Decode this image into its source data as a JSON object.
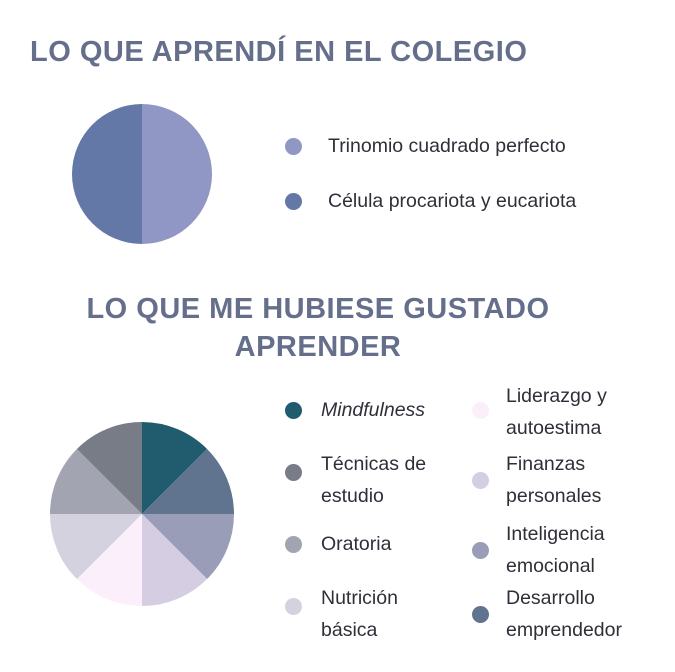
{
  "title_1": "LO QUE APRENDÍ EN EL COLEGIO",
  "title_2": "LO QUE ME HUBIESE GUSTADO APRENDER",
  "chart_data": [
    {
      "type": "pie",
      "title": "LO QUE APRENDÍ EN EL COLEGIO",
      "slices": [
        {
          "label": "Trinomio cuadrado perfecto",
          "value": 50,
          "color": "#9197c4"
        },
        {
          "label": "Célula procariota y eucariota",
          "value": 50,
          "color": "#6478a7"
        }
      ]
    },
    {
      "type": "pie",
      "title": "LO QUE ME HUBIESE GUSTADO APRENDER",
      "slices": [
        {
          "label": "Mindfulness",
          "value": 12.5,
          "color": "#215c6e",
          "italic": true
        },
        {
          "label": "Desarrollo emprendedor",
          "value": 12.5,
          "color": "#60748f"
        },
        {
          "label": "Inteligencia emocional",
          "value": 12.5,
          "color": "#999db8"
        },
        {
          "label": "Finanzas personales",
          "value": 12.5,
          "color": "#d5cde2"
        },
        {
          "label": "Liderazgo y autoestima",
          "value": 12.5,
          "color": "#fbeffb"
        },
        {
          "label": "Nutrición básica",
          "value": 12.5,
          "color": "#d4d2df"
        },
        {
          "label": "Oratoria",
          "value": 12.5,
          "color": "#a3a4b2"
        },
        {
          "label": "Técnicas de estudio",
          "value": 12.5,
          "color": "#777c86"
        }
      ]
    }
  ],
  "legend_1": [
    {
      "lines": [
        "Trinomio cuadrado perfecto"
      ],
      "color": "#9197c4"
    },
    {
      "lines": [
        "Célula procariota y eucariota"
      ],
      "color": "#6478a7"
    }
  ],
  "legend_2": [
    {
      "lines": [
        "Mindfulness"
      ],
      "color": "#215c6e",
      "italic": true
    },
    {
      "lines": [
        "Técnicas de",
        "estudio"
      ],
      "color": "#777c86"
    },
    {
      "lines": [
        "Oratoria"
      ],
      "color": "#a3a4b2"
    },
    {
      "lines": [
        "Nutrición",
        "básica"
      ],
      "color": "#d4d2df"
    },
    {
      "lines": [
        "Liderazgo y",
        "autoestima"
      ],
      "color": "#fbeffb"
    },
    {
      "lines": [
        "Finanzas",
        "personales"
      ],
      "color": "#d5cde2"
    },
    {
      "lines": [
        "Inteligencia",
        "emocional"
      ],
      "color": "#999db8"
    },
    {
      "lines": [
        "Desarrollo",
        "emprendedor"
      ],
      "color": "#60748f"
    }
  ]
}
